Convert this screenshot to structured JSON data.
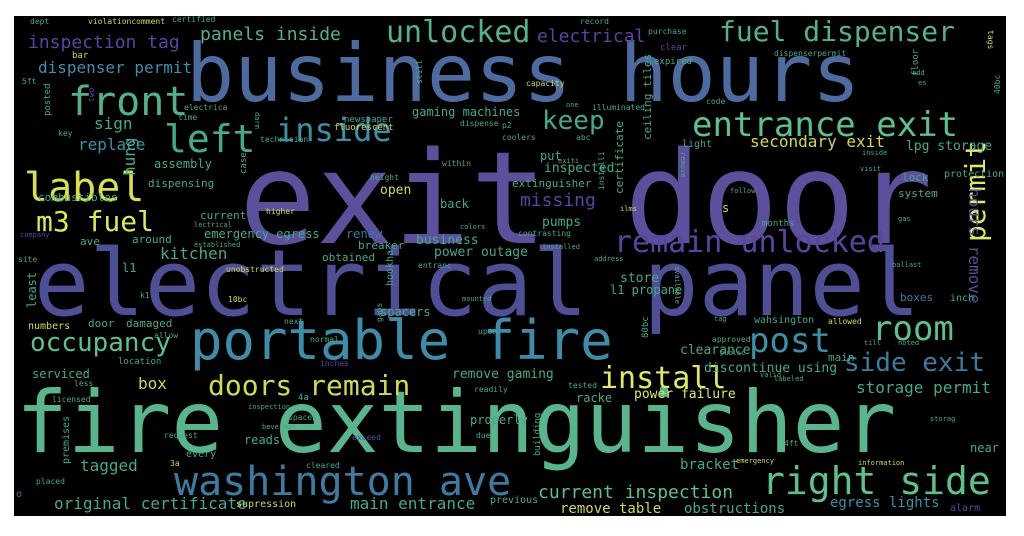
{
  "words": [
    {
      "t": "exit door",
      "c": "#5c4f9c"
    },
    {
      "t": "business hours",
      "c": "#4d6b9f"
    },
    {
      "t": "electrical panel",
      "c": "#4f4f95"
    },
    {
      "t": "fire extinguisher",
      "c": "#5ab48c"
    },
    {
      "t": "portable fire",
      "c": "#3f8ba8"
    },
    {
      "t": "washington ave",
      "c": "#3f7aa0"
    },
    {
      "t": "remain unlocked",
      "c": "#5b44a0"
    },
    {
      "t": "entrance exit",
      "c": "#5fc08c"
    },
    {
      "t": "right side",
      "c": "#5fc08c"
    },
    {
      "t": "front",
      "c": "#56b08c"
    },
    {
      "t": "inside",
      "c": "#3f8fa8"
    },
    {
      "t": "left",
      "c": "#48a88c"
    },
    {
      "t": "label",
      "c": "#d8df55"
    },
    {
      "t": "m3 fuel",
      "c": "#dbe85a"
    },
    {
      "t": "fuel dispenser",
      "c": "#56b08c"
    },
    {
      "t": "unlocked",
      "c": "#56b08c"
    },
    {
      "t": "keep",
      "c": "#48a88c"
    },
    {
      "t": "install",
      "c": "#dfe86b"
    },
    {
      "t": "doors remain",
      "c": "#cfd95a"
    },
    {
      "t": "room",
      "c": "#5fc08c"
    },
    {
      "t": "post",
      "c": "#3f8fa8"
    },
    {
      "t": "occupancy",
      "c": "#5fc08c"
    },
    {
      "t": "side exit",
      "c": "#3f7aa0"
    },
    {
      "t": "permit",
      "c": "#dfe86b"
    },
    {
      "t": "panels inside",
      "c": "#56b08c"
    },
    {
      "t": "electrical",
      "c": "#5b44a0"
    },
    {
      "t": "inspection tag",
      "c": "#5b44a0"
    },
    {
      "t": "dispenser permit",
      "c": "#3f8fa8"
    },
    {
      "t": "current inspection",
      "c": "#5fc08c"
    },
    {
      "t": "original certificate",
      "c": "#48a88c"
    },
    {
      "t": "main entrance",
      "c": "#48a88c"
    },
    {
      "t": "storage permit",
      "c": "#48a88c"
    },
    {
      "t": "secondary exit",
      "c": "#cfd95a"
    },
    {
      "t": "lpg storage",
      "c": "#48a88c"
    },
    {
      "t": "hours remove",
      "c": "#4f4f95"
    },
    {
      "t": "missing",
      "c": "#5b44a0"
    },
    {
      "t": "kitchen",
      "c": "#48a88c"
    },
    {
      "t": "tagged",
      "c": "#48a88c"
    },
    {
      "t": "box",
      "c": "#cfd95a"
    },
    {
      "t": "sign",
      "c": "#48a88c"
    },
    {
      "t": "replace",
      "c": "#3f8fa8"
    },
    {
      "t": "hung",
      "c": "#48a88c"
    },
    {
      "t": "remove table",
      "c": "#cfd95a"
    },
    {
      "t": "egress lights",
      "c": "#3f8fa8"
    },
    {
      "t": "obstructions",
      "c": "#48a88c"
    },
    {
      "t": "bracket",
      "c": "#48a88c"
    },
    {
      "t": "power failure",
      "c": "#dfe86b"
    },
    {
      "t": "remove gaming",
      "c": "#48a88c"
    },
    {
      "t": "clearance",
      "c": "#48a88c"
    },
    {
      "t": "discontinue using",
      "c": "#48a88c"
    },
    {
      "t": "business",
      "c": "#48a88c"
    },
    {
      "t": "power outage",
      "c": "#48a88c"
    },
    {
      "t": "pumps",
      "c": "#48a88c"
    },
    {
      "t": "store",
      "c": "#48a88c"
    },
    {
      "t": "l1 propane",
      "c": "#48a88c"
    },
    {
      "t": "inspected",
      "c": "#48a88c"
    },
    {
      "t": "gaming machines",
      "c": "#48a88c"
    },
    {
      "t": "assembly",
      "c": "#48a88c"
    },
    {
      "t": "dispensing",
      "c": "#48a88c"
    },
    {
      "t": "combustibles",
      "c": "#48a88c"
    },
    {
      "t": "current",
      "c": "#48a88c"
    },
    {
      "t": "emergency egress",
      "c": "#48a88c"
    },
    {
      "t": "renew",
      "c": "#3f7aa0"
    },
    {
      "t": "around",
      "c": "#48a88c"
    },
    {
      "t": "breaker",
      "c": "#48a88c"
    },
    {
      "t": "obtained",
      "c": "#48a88c"
    },
    {
      "t": "open",
      "c": "#cfd95a"
    },
    {
      "t": "back",
      "c": "#48a88c"
    },
    {
      "t": "put",
      "c": "#48a88c"
    },
    {
      "t": "extinguisher",
      "c": "#48a88c"
    },
    {
      "t": "ave",
      "c": "#48a88c"
    },
    {
      "t": "l1",
      "c": "#48a88c"
    },
    {
      "t": "serviced",
      "c": "#48a88c"
    },
    {
      "t": "numbers",
      "c": "#cfd95a"
    },
    {
      "t": "door",
      "c": "#48a88c"
    },
    {
      "t": "damaged",
      "c": "#48a88c"
    },
    {
      "t": "reads",
      "c": "#48a88c"
    },
    {
      "t": "properly",
      "c": "#48a88c"
    },
    {
      "t": "racke",
      "c": "#48a88c"
    },
    {
      "t": "near",
      "c": "#48a88c"
    },
    {
      "t": "boxes",
      "c": "#3f7aa0"
    },
    {
      "t": "lock",
      "c": "#48a88c"
    },
    {
      "t": "system",
      "c": "#48a88c"
    },
    {
      "t": "protection",
      "c": "#48a88c"
    },
    {
      "t": "s",
      "c": "#cfd95a"
    },
    {
      "t": "every",
      "c": "#48a88c"
    },
    {
      "t": "previous",
      "c": "#48a88c"
    },
    {
      "t": "supression",
      "c": "#cfd95a"
    },
    {
      "t": "spacers",
      "c": "#48a88c"
    },
    {
      "t": "least",
      "c": "#48a88c"
    },
    {
      "t": "main",
      "c": "#48a88c"
    },
    {
      "t": "wahsington",
      "c": "#48a88c"
    },
    {
      "t": "inch",
      "c": "#48a88c"
    },
    {
      "t": "alarm",
      "c": "#5b44a0"
    },
    {
      "t": "certificate",
      "c": "#48a88c"
    },
    {
      "t": "ceiling tiles",
      "c": "#48a88c"
    },
    {
      "t": "newspaper",
      "c": "#48a88c"
    },
    {
      "t": "fluorescent",
      "c": "#cfd95a"
    },
    {
      "t": "light",
      "c": "#48a88c"
    },
    {
      "t": "posted",
      "c": "#48a88c"
    },
    {
      "t": "higher",
      "c": "#cfd95a"
    },
    {
      "t": "months",
      "c": "#48a88c"
    },
    {
      "t": "location",
      "c": "#48a88c"
    },
    {
      "t": "upon",
      "c": "#48a88c"
    },
    {
      "t": "placed",
      "c": "#48a88c"
    },
    {
      "t": "premises",
      "c": "#48a88c"
    },
    {
      "t": "building",
      "c": "#48a88c"
    },
    {
      "t": "hookha",
      "c": "#48a88c"
    },
    {
      "t": "4ft",
      "c": "#48a88c"
    },
    {
      "t": "80bc",
      "c": "#48a88c"
    },
    {
      "t": "10bc",
      "c": "#cfd95a"
    },
    {
      "t": "allowed",
      "c": "#cfd95a"
    },
    {
      "t": "approved",
      "c": "#48a88c"
    },
    {
      "t": "capacity",
      "c": "#cfd95a"
    },
    {
      "t": "dispense",
      "c": "#48a88c"
    },
    {
      "t": "within",
      "c": "#48a88c"
    },
    {
      "t": "coolers",
      "c": "#48a88c"
    },
    {
      "t": "case",
      "c": "#48a88c"
    },
    {
      "t": "height",
      "c": "#48a88c"
    },
    {
      "t": "technician",
      "c": "#48a88c"
    },
    {
      "t": "dept",
      "c": "#48a88c"
    },
    {
      "t": "violationcomment",
      "c": "#cfd95a"
    },
    {
      "t": "certified",
      "c": "#48a88c"
    },
    {
      "t": "record",
      "c": "#48a88c"
    },
    {
      "t": "purchase",
      "c": "#48a88c"
    },
    {
      "t": "dispenserpermit",
      "c": "#48a88c"
    },
    {
      "t": "bar",
      "c": "#cfd95a"
    },
    {
      "t": "clear",
      "c": "#5b44a0"
    },
    {
      "t": "expired",
      "c": "#48a88c"
    },
    {
      "t": "floor",
      "c": "#48a88c"
    },
    {
      "t": "code",
      "c": "#48a88c"
    },
    {
      "t": "illuminated",
      "c": "#48a88c"
    },
    {
      "t": "time",
      "c": "#48a88c"
    },
    {
      "t": "electrica",
      "c": "#48a88c"
    },
    {
      "t": "key",
      "c": "#48a88c"
    },
    {
      "t": "still",
      "c": "#48a88c"
    },
    {
      "t": "abc",
      "c": "#48a88c"
    },
    {
      "t": "5ft",
      "c": "#48a88c"
    },
    {
      "t": "two",
      "c": "#5b44a0"
    },
    {
      "t": "site",
      "c": "#48a88c"
    },
    {
      "t": "company",
      "c": "#5b44a0"
    },
    {
      "t": "k1",
      "c": "#48a88c"
    },
    {
      "t": "allow",
      "c": "#48a88c"
    },
    {
      "t": "less",
      "c": "#48a88c"
    },
    {
      "t": "licensed",
      "c": "#48a88c"
    },
    {
      "t": "4a",
      "c": "#48a88c"
    },
    {
      "t": "spaces",
      "c": "#48a88c"
    },
    {
      "t": "inspection",
      "c": "#48a88c"
    },
    {
      "t": "beverage",
      "c": "#48a88c"
    },
    {
      "t": "request",
      "c": "#48a88c"
    },
    {
      "t": "3a",
      "c": "#cfd95a"
    },
    {
      "t": "cleared",
      "c": "#48a88c"
    },
    {
      "t": "exceed",
      "c": "#5b44a0"
    },
    {
      "t": "due",
      "c": "#48a88c"
    },
    {
      "t": "tested",
      "c": "#48a88c"
    },
    {
      "t": "readily",
      "c": "#48a88c"
    },
    {
      "t": "normal",
      "c": "#48a88c"
    },
    {
      "t": "inches",
      "c": "#5b44a0"
    },
    {
      "t": "next",
      "c": "#48a88c"
    },
    {
      "t": "unobstructed",
      "c": "#cfd95a"
    },
    {
      "t": "established",
      "c": "#48a88c"
    },
    {
      "t": "entranc",
      "c": "#48a88c"
    },
    {
      "t": "installed",
      "c": "#48a88c"
    },
    {
      "t": "address",
      "c": "#48a88c"
    },
    {
      "t": "mounted",
      "c": "#48a88c"
    },
    {
      "t": "gaps",
      "c": "#48a88c"
    },
    {
      "t": "contrasting",
      "c": "#48a88c"
    },
    {
      "t": "colors",
      "c": "#48a88c"
    },
    {
      "t": "valid",
      "c": "#48a88c"
    },
    {
      "t": "labeled",
      "c": "#48a88c"
    },
    {
      "t": "public",
      "c": "#48a88c"
    },
    {
      "t": "till",
      "c": "#48a88c"
    },
    {
      "t": "noted",
      "c": "#48a88c"
    },
    {
      "t": "emergency",
      "c": "#cfd95a"
    },
    {
      "t": "information",
      "c": "#cfd95a"
    },
    {
      "t": "storag",
      "c": "#48a88c"
    },
    {
      "t": "ballast",
      "c": "#48a88c"
    },
    {
      "t": "gas",
      "c": "#48a88c"
    },
    {
      "t": "visit",
      "c": "#48a88c"
    },
    {
      "t": "follow",
      "c": "#48a88c"
    },
    {
      "t": "remove",
      "c": "#48a88c"
    },
    {
      "t": "available",
      "c": "#48a88c"
    },
    {
      "t": "ilms",
      "c": "#cfd95a"
    },
    {
      "t": "installi",
      "c": "#48a88c"
    },
    {
      "t": "exiti",
      "c": "#48a88c"
    },
    {
      "t": "one",
      "c": "#48a88c"
    },
    {
      "t": "p2",
      "c": "#48a88c"
    },
    {
      "t": "add",
      "c": "#48a88c"
    },
    {
      "t": "es",
      "c": "#48a88c"
    },
    {
      "t": "40bc",
      "c": "#48a88c"
    },
    {
      "t": "tags",
      "c": "#cfd95a"
    },
    {
      "t": "o",
      "c": "#3f7aa0"
    },
    {
      "t": "tag",
      "c": "#48a88c"
    },
    {
      "t": "darm",
      "c": "#48a88c"
    },
    {
      "t": "inside",
      "c": "#48a88c"
    },
    {
      "t": "lectrical",
      "c": "#48a88c"
    }
  ]
}
